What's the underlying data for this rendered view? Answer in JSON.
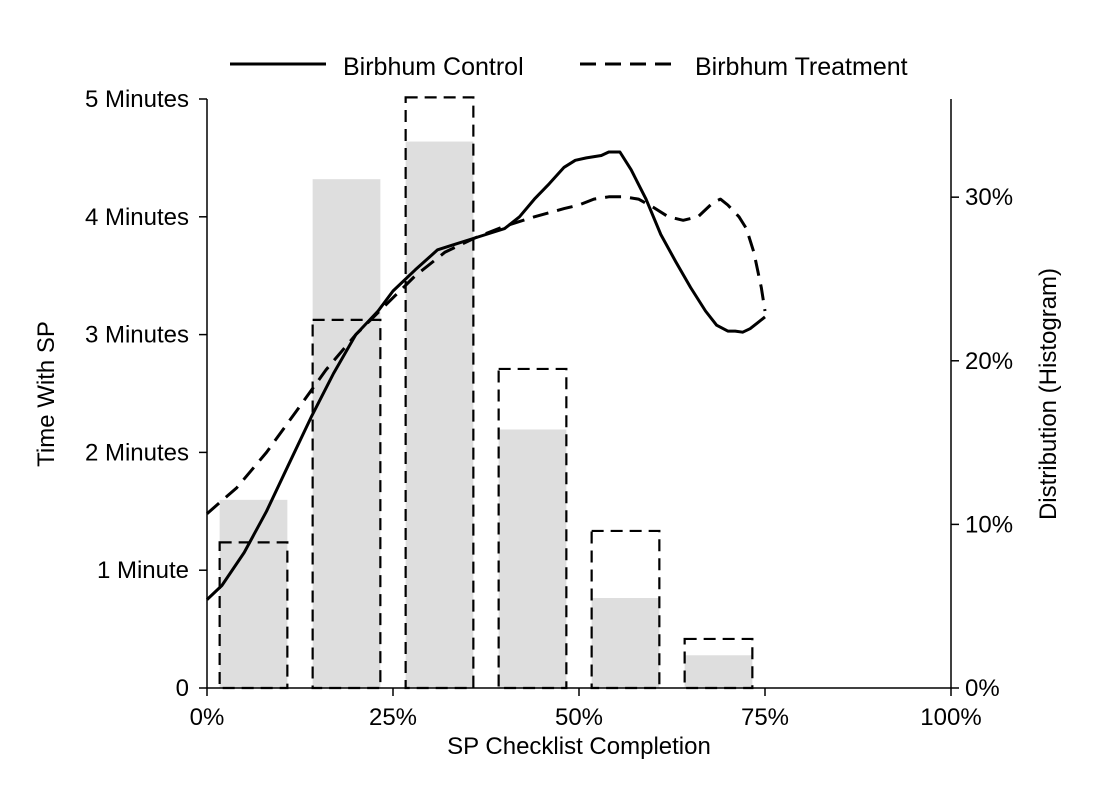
{
  "chart_data": {
    "type": "bar+line",
    "title": "",
    "xlabel": "SP Checklist Completion",
    "ylabel_left": "Time With SP",
    "ylabel_right": "Distribution (Histogram)",
    "xlim": [
      0,
      100
    ],
    "ylim_left": [
      0,
      5
    ],
    "ylim_right": [
      0,
      36
    ],
    "x_ticks": [
      {
        "value": 0,
        "label": "0%"
      },
      {
        "value": 25,
        "label": "25%"
      },
      {
        "value": 50,
        "label": "50%"
      },
      {
        "value": 75,
        "label": "75%"
      },
      {
        "value": 100,
        "label": "100%"
      }
    ],
    "y_left_ticks": [
      {
        "value": 0,
        "label": "0"
      },
      {
        "value": 1,
        "label": "1 Minute"
      },
      {
        "value": 2,
        "label": "2 Minutes"
      },
      {
        "value": 3,
        "label": "3 Minutes"
      },
      {
        "value": 4,
        "label": "4 Minutes"
      },
      {
        "value": 5,
        "label": "5 Minutes"
      }
    ],
    "y_right_ticks": [
      {
        "value": 0,
        "label": "0%"
      },
      {
        "value": 10,
        "label": "10%"
      },
      {
        "value": 20,
        "label": "20%"
      },
      {
        "value": 30,
        "label": "30%"
      }
    ],
    "legend": {
      "placement": "top",
      "entries": [
        {
          "label": "Birbhum Control",
          "style": "solid"
        },
        {
          "label": "Birbhum Treatment",
          "style": "dashed"
        }
      ]
    },
    "histogram": {
      "bins": [
        {
          "x0": 1.7,
          "x1": 10.8,
          "control": 11.5,
          "treatment": 8.9
        },
        {
          "x0": 14.2,
          "x1": 23.3,
          "control": 31.1,
          "treatment": 22.5
        },
        {
          "x0": 26.7,
          "x1": 35.8,
          "control": 33.4,
          "treatment": 36.1
        },
        {
          "x0": 39.2,
          "x1": 48.3,
          "control": 15.8,
          "treatment": 19.5
        },
        {
          "x0": 51.7,
          "x1": 60.8,
          "control": 5.5,
          "treatment": 9.6
        },
        {
          "x0": 64.2,
          "x1": 73.3,
          "control": 2.0,
          "treatment": 3.0
        }
      ],
      "control_fill": "#dedede",
      "treatment_stroke": "#000000"
    },
    "series": [
      {
        "name": "Birbhum Control",
        "style": "solid",
        "axis": "left",
        "points": [
          [
            0,
            0.75
          ],
          [
            2,
            0.87
          ],
          [
            5,
            1.15
          ],
          [
            8,
            1.5
          ],
          [
            11,
            1.9
          ],
          [
            14,
            2.3
          ],
          [
            17,
            2.67
          ],
          [
            20,
            3.0
          ],
          [
            23,
            3.2
          ],
          [
            25,
            3.37
          ],
          [
            28,
            3.55
          ],
          [
            31,
            3.72
          ],
          [
            33,
            3.76
          ],
          [
            36,
            3.82
          ],
          [
            40,
            3.9
          ],
          [
            42,
            4.0
          ],
          [
            44,
            4.15
          ],
          [
            46,
            4.28
          ],
          [
            48,
            4.42
          ],
          [
            49.5,
            4.48
          ],
          [
            51,
            4.5
          ],
          [
            53,
            4.52
          ],
          [
            54,
            4.55
          ],
          [
            55.5,
            4.55
          ],
          [
            57,
            4.4
          ],
          [
            59,
            4.15
          ],
          [
            61,
            3.85
          ],
          [
            63,
            3.62
          ],
          [
            65,
            3.4
          ],
          [
            67,
            3.2
          ],
          [
            68.5,
            3.08
          ],
          [
            70,
            3.03
          ],
          [
            71,
            3.03
          ],
          [
            72,
            3.02
          ],
          [
            73,
            3.05
          ],
          [
            74,
            3.1
          ],
          [
            75,
            3.15
          ]
        ]
      },
      {
        "name": "Birbhum Treatment",
        "style": "dashed",
        "axis": "left",
        "points": [
          [
            0,
            1.48
          ],
          [
            4,
            1.7
          ],
          [
            8,
            2.0
          ],
          [
            12,
            2.35
          ],
          [
            16,
            2.7
          ],
          [
            20,
            3.0
          ],
          [
            24,
            3.25
          ],
          [
            28,
            3.5
          ],
          [
            32,
            3.7
          ],
          [
            36,
            3.82
          ],
          [
            40,
            3.92
          ],
          [
            44,
            4.0
          ],
          [
            48,
            4.07
          ],
          [
            50,
            4.1
          ],
          [
            52,
            4.15
          ],
          [
            54,
            4.17
          ],
          [
            56,
            4.17
          ],
          [
            58,
            4.15
          ],
          [
            60,
            4.08
          ],
          [
            62,
            4.0
          ],
          [
            64,
            3.97
          ],
          [
            66,
            4.0
          ],
          [
            68,
            4.12
          ],
          [
            69,
            4.15
          ],
          [
            70,
            4.1
          ],
          [
            71.5,
            4.0
          ],
          [
            72.5,
            3.9
          ],
          [
            73.5,
            3.7
          ],
          [
            74.5,
            3.4
          ],
          [
            75,
            3.2
          ]
        ]
      }
    ]
  }
}
